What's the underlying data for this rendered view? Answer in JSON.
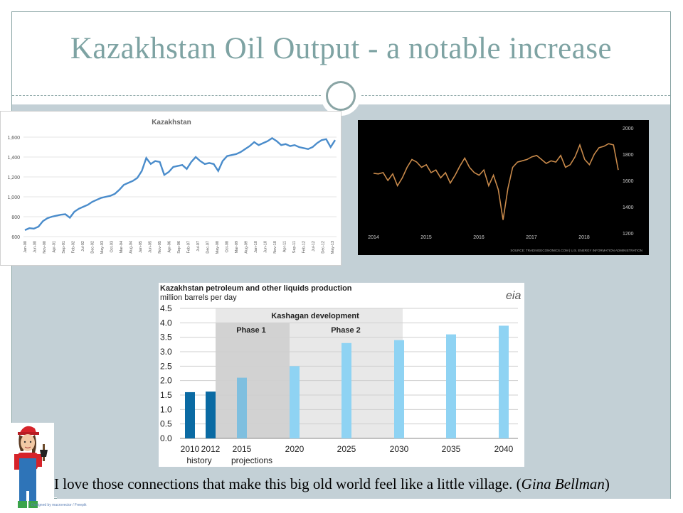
{
  "slide": {
    "title": "Kazakhstan Oil Output  - a notable increase",
    "quote_text": "I love those connections that make this big old world feel like a little village. (",
    "quote_author": "Gina Bellman",
    "quote_close": ")",
    "credit": "Designed by macrovector / Freepik"
  },
  "colors": {
    "title": "#7ea3a3",
    "content_bg": "#c3d0d6",
    "line_blue": "#4a8ccb",
    "line_orange": "#c98a4b",
    "bar_dark": "#0a6aa3",
    "bar_mid": "#7fbfdf",
    "bar_light": "#8fd3f3"
  },
  "chart_data": [
    {
      "type": "line",
      "title": "Kazakhstan",
      "ylim": [
        600,
        1700
      ],
      "yticks": [
        "600",
        "800",
        "1,000",
        "1,200",
        "1,400",
        "1,600"
      ],
      "xticks": [
        "Jan-00",
        "Jun-00",
        "Nov-00",
        "Apr-01",
        "Sep-01",
        "Feb-02",
        "Jul-02",
        "Dec-02",
        "May-03",
        "Oct-03",
        "Mar-04",
        "Aug-04",
        "Jan-05",
        "Jun-05",
        "Nov-05",
        "Apr-06",
        "Sep-06",
        "Feb-07",
        "Jul-07",
        "Dec-07",
        "May-08",
        "Oct-08",
        "Mar-09",
        "Aug-09",
        "Jan-10",
        "Jun-10",
        "Nov-10",
        "Apr-11",
        "Sep-11",
        "Feb-12",
        "Jul-12",
        "Dec-12",
        "May-13"
      ],
      "series": [
        {
          "values": [
            665,
            685,
            680,
            700,
            755,
            785,
            800,
            810,
            820,
            825,
            790,
            850,
            880,
            900,
            920,
            950,
            970,
            990,
            1000,
            1010,
            1030,
            1070,
            1120,
            1140,
            1160,
            1190,
            1260,
            1390,
            1330,
            1360,
            1350,
            1220,
            1250,
            1300,
            1310,
            1320,
            1280,
            1350,
            1400,
            1360,
            1330,
            1340,
            1330,
            1260,
            1360,
            1410,
            1420,
            1430,
            1450,
            1480,
            1510,
            1550,
            1520,
            1540,
            1560,
            1590,
            1560,
            1520,
            1530,
            1510,
            1520,
            1500,
            1490,
            1480,
            1500,
            1540,
            1570,
            1580,
            1500,
            1570
          ]
        }
      ]
    },
    {
      "type": "line",
      "ylim": [
        1200,
        2000
      ],
      "yticks": [
        "2000",
        "1800",
        "1600",
        "1400",
        "1200"
      ],
      "xticks": [
        "2014",
        "2015",
        "2016",
        "2017",
        "2018"
      ],
      "source": "SOURCE: TRADINGECONOMICS.COM  |  U.S. ENERGY INFORMATION ADMINISTRATION",
      "series": [
        {
          "values": [
            1655,
            1650,
            1660,
            1600,
            1650,
            1560,
            1620,
            1700,
            1760,
            1740,
            1700,
            1720,
            1660,
            1680,
            1620,
            1660,
            1580,
            1640,
            1710,
            1770,
            1700,
            1660,
            1640,
            1680,
            1560,
            1640,
            1530,
            1300,
            1540,
            1700,
            1740,
            1750,
            1760,
            1780,
            1790,
            1760,
            1730,
            1750,
            1740,
            1790,
            1700,
            1720,
            1780,
            1870,
            1760,
            1720,
            1800,
            1850,
            1860,
            1880,
            1870,
            1680
          ]
        }
      ]
    },
    {
      "type": "bar",
      "title": "Kazakhstan petroleum and other liquids production",
      "subtitle": "million barrels per day",
      "logo": "eia",
      "ylim": [
        0,
        4.5
      ],
      "yticks": [
        "4.5",
        "4.0",
        "3.5",
        "3.0",
        "2.5",
        "2.0",
        "1.5",
        "1.0",
        "0.5",
        "0.0"
      ],
      "categories": [
        "2010",
        "2012",
        "2015",
        "2020",
        "2025",
        "2030",
        "2035",
        "2040"
      ],
      "values": [
        1.6,
        1.62,
        2.1,
        2.5,
        3.3,
        3.4,
        3.6,
        3.9
      ],
      "annotations": {
        "kashagan": "Kashagan development",
        "phase1": "Phase 1",
        "phase2": "Phase 2",
        "history": "history",
        "projections": "projections"
      }
    }
  ]
}
